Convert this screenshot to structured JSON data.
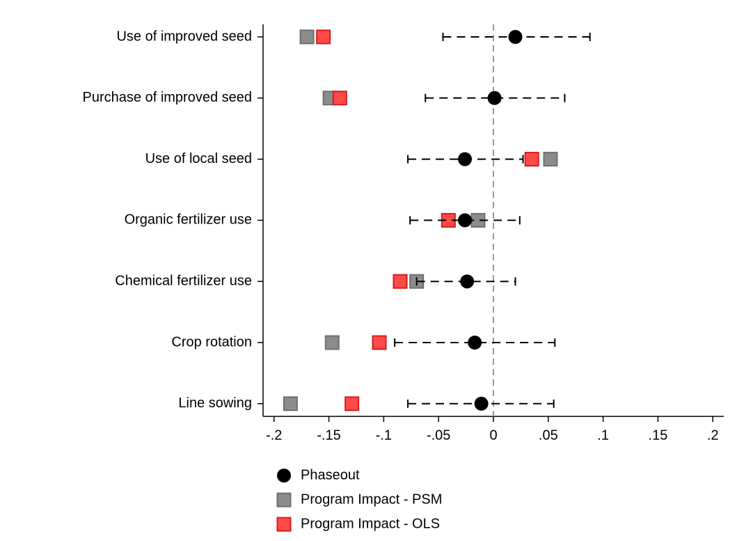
{
  "chart_data": {
    "type": "coefplot",
    "categories": [
      "Use of improved seed",
      "Purchase of improved seed",
      "Use of local seed",
      "Organic fertilizer use",
      "Chemical fertilizer use",
      "Crop rotation",
      "Line sowing"
    ],
    "series": [
      {
        "name": "Phaseout",
        "color": "#000000",
        "marker": "circle",
        "values": [
          0.02,
          0.001,
          -0.026,
          -0.026,
          -0.024,
          -0.017,
          -0.011
        ],
        "lower": [
          -0.046,
          -0.062,
          -0.078,
          -0.076,
          -0.07,
          -0.09,
          -0.078
        ],
        "upper": [
          0.088,
          0.065,
          0.027,
          0.024,
          0.02,
          0.056,
          0.055
        ]
      },
      {
        "name": "Program Impact - PSM",
        "color": "#8c8c8c",
        "marker": "square",
        "values": [
          -0.17,
          -0.149,
          0.052,
          -0.014,
          -0.07,
          -0.147,
          -0.185
        ]
      },
      {
        "name": "Program Impact - OLS",
        "color": "#ff4a4a",
        "marker": "square",
        "values": [
          -0.155,
          -0.14,
          0.035,
          -0.041,
          -0.085,
          -0.104,
          -0.129
        ]
      }
    ],
    "xlim": [
      -0.21,
      0.21
    ],
    "xticks": [
      {
        "value": -0.2,
        "label": "-.2"
      },
      {
        "value": -0.15,
        "label": "-.15"
      },
      {
        "value": -0.1,
        "label": "-.1"
      },
      {
        "value": -0.05,
        "label": "-.05"
      },
      0,
      {
        "value": 0.05,
        "label": ".05"
      },
      {
        "value": 0.1,
        "label": ".1"
      },
      {
        "value": 0.15,
        "label": ".15"
      },
      {
        "value": 0.2,
        "label": ".2"
      }
    ],
    "reference_line": 0,
    "legend": "bottom"
  }
}
